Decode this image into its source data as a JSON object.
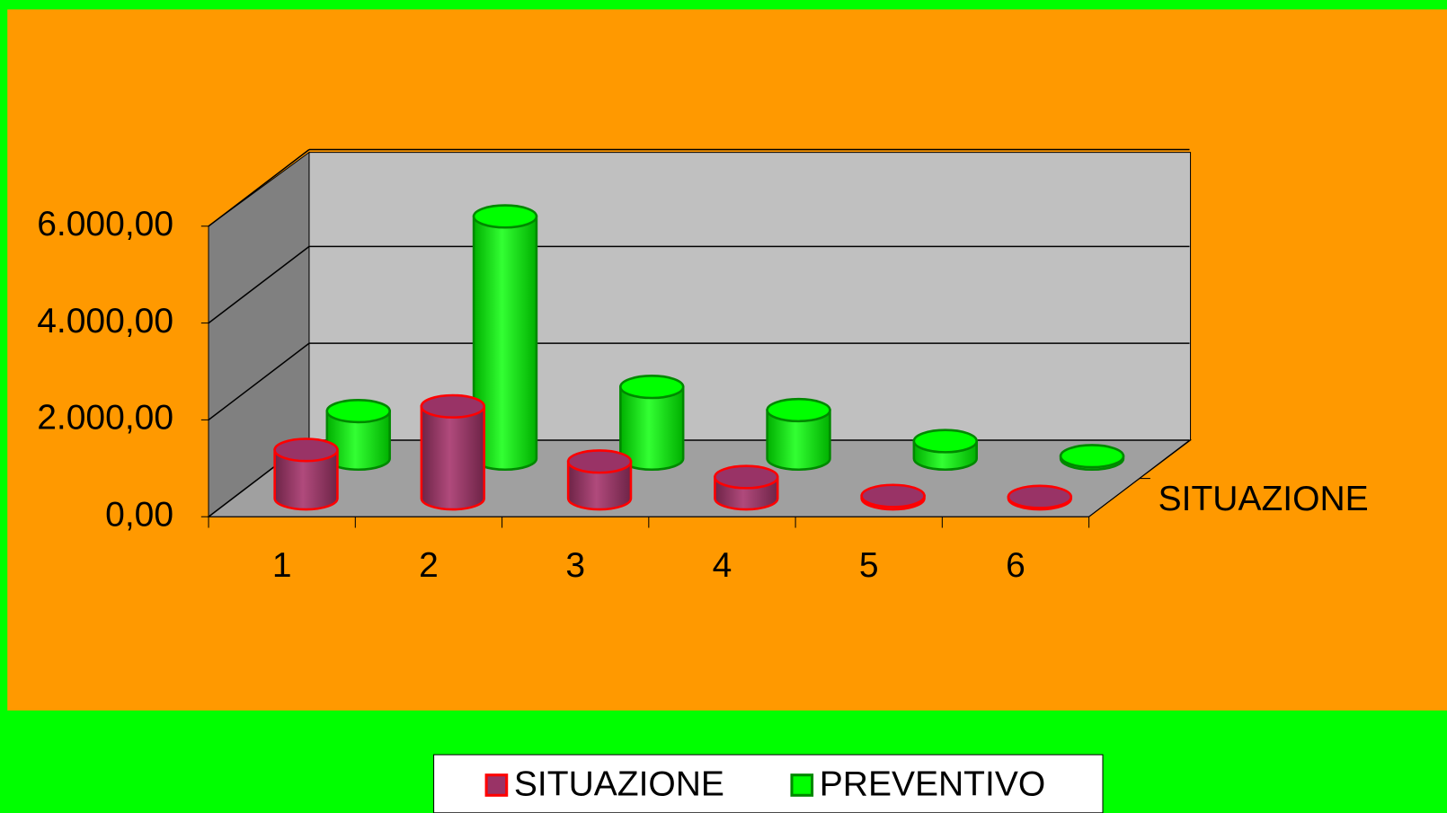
{
  "chart_data": {
    "type": "bar3d-cylinder",
    "categories": [
      "1",
      "2",
      "3",
      "4",
      "5",
      "6"
    ],
    "series": [
      {
        "name": "SITUAZIONE",
        "color": "#993366",
        "edge_color": "#ff0000",
        "values": [
          1000,
          1900,
          760,
          440,
          50,
          30
        ]
      },
      {
        "name": "PREVENTIVO",
        "color": "#00ff00",
        "edge_color": "#008800",
        "values": [
          980,
          5000,
          1480,
          1000,
          360,
          50
        ]
      }
    ],
    "depth_label": "SITUAZIONE",
    "ylim": [
      0,
      6000
    ],
    "yticks": [
      {
        "value": 0,
        "label": "0,00"
      },
      {
        "value": 2000,
        "label": "2.000,00"
      },
      {
        "value": 4000,
        "label": "4.000,00"
      },
      {
        "value": 6000,
        "label": "6.000,00"
      }
    ],
    "grid": true,
    "legend": "bottom"
  }
}
